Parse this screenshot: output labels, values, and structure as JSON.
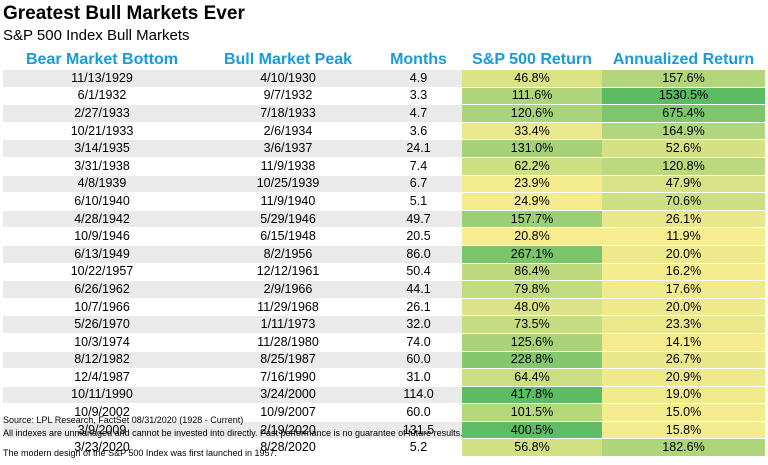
{
  "header": {
    "title": "Greatest Bull Markets Ever",
    "subtitle": "S&P 500 Index Bull Markets"
  },
  "chart_data": {
    "type": "table",
    "columns": [
      "Bear Market Bottom",
      "Bull Market Peak",
      "Months",
      "S&P 500 Return",
      "Annualized Return"
    ],
    "rows": [
      [
        "11/13/1929",
        "4/10/1930",
        "4.9",
        "46.8%",
        "157.6%"
      ],
      [
        "6/1/1932",
        "9/7/1932",
        "3.3",
        "111.6%",
        "1530.5%"
      ],
      [
        "2/27/1933",
        "7/18/1933",
        "4.7",
        "120.6%",
        "675.4%"
      ],
      [
        "10/21/1933",
        "2/6/1934",
        "3.6",
        "33.4%",
        "164.9%"
      ],
      [
        "3/14/1935",
        "3/6/1937",
        "24.1",
        "131.0%",
        "52.6%"
      ],
      [
        "3/31/1938",
        "11/9/1938",
        "7.4",
        "62.2%",
        "120.8%"
      ],
      [
        "4/8/1939",
        "10/25/1939",
        "6.7",
        "23.9%",
        "47.9%"
      ],
      [
        "6/10/1940",
        "11/9/1940",
        "5.1",
        "24.9%",
        "70.6%"
      ],
      [
        "4/28/1942",
        "5/29/1946",
        "49.7",
        "157.7%",
        "26.1%"
      ],
      [
        "10/9/1946",
        "6/15/1948",
        "20.5",
        "20.8%",
        "11.9%"
      ],
      [
        "6/13/1949",
        "8/2/1956",
        "86.0",
        "267.1%",
        "20.0%"
      ],
      [
        "10/22/1957",
        "12/12/1961",
        "50.4",
        "86.4%",
        "16.2%"
      ],
      [
        "6/26/1962",
        "2/9/1966",
        "44.1",
        "79.8%",
        "17.6%"
      ],
      [
        "10/7/1966",
        "11/29/1968",
        "26.1",
        "48.0%",
        "20.0%"
      ],
      [
        "5/26/1970",
        "1/11/1973",
        "32.0",
        "73.5%",
        "23.3%"
      ],
      [
        "10/3/1974",
        "11/28/1980",
        "74.0",
        "125.6%",
        "14.1%"
      ],
      [
        "8/12/1982",
        "8/25/1987",
        "60.0",
        "228.8%",
        "26.7%"
      ],
      [
        "12/4/1987",
        "7/16/1990",
        "31.0",
        "64.4%",
        "20.9%"
      ],
      [
        "10/11/1990",
        "3/24/2000",
        "114.0",
        "417.8%",
        "19.0%"
      ],
      [
        "10/9/2002",
        "10/9/2007",
        "60.0",
        "101.5%",
        "15.0%"
      ],
      [
        "3/9/2009",
        "2/19/2020",
        "131.5",
        "400.5%",
        "15.8%"
      ],
      [
        "3/23/2020",
        "8/28/2020",
        "5.2",
        "56.8%",
        "182.6%"
      ]
    ],
    "heat_colors": {
      "low": "#f7ec8f",
      "high": "#5dbb63"
    }
  },
  "footer": {
    "source": "Source: LPL Research, FactSet 08/31/2020 (1928 - Current)",
    "disclaimer": "All indexes are unmanaged and cannot be invested into directly. Past performance is no guarantee of future results.",
    "note": "The modern design of the S&P 500 Index was first launched in 1957."
  }
}
